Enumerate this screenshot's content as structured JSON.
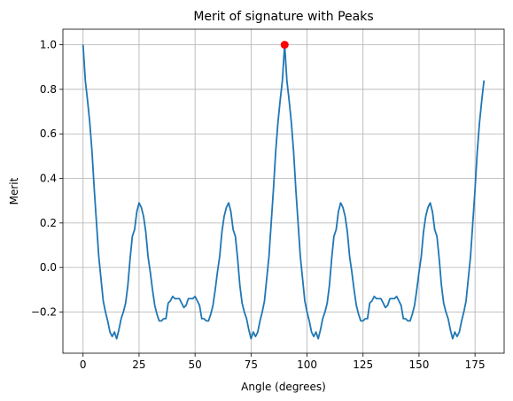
{
  "chart_data": {
    "type": "line",
    "title": "Merit of signature with Peaks",
    "xlabel": "Angle (degrees)",
    "ylabel": "Merit",
    "xlim": [
      -9,
      188
    ],
    "ylim": [
      -0.385,
      1.07
    ],
    "grid": true,
    "xticks": [
      0,
      25,
      50,
      75,
      100,
      125,
      150,
      175
    ],
    "xtick_labels": [
      "0",
      "25",
      "50",
      "75",
      "100",
      "125",
      "150",
      "175"
    ],
    "yticks": [
      -0.2,
      0.0,
      0.2,
      0.4,
      0.6,
      0.8,
      1.0
    ],
    "ytick_labels": [
      "−0.2",
      "0.0",
      "0.2",
      "0.4",
      "0.6",
      "0.8",
      "1.0"
    ],
    "series": [
      {
        "type": "line",
        "color": "#1f77b4",
        "x": [
          0,
          1,
          2,
          3,
          4,
          5,
          6,
          7,
          8,
          9,
          10,
          11,
          12,
          13,
          14,
          15,
          16,
          17,
          18,
          19,
          20,
          21,
          22,
          23,
          24,
          25,
          26,
          27,
          28,
          29,
          30,
          31,
          32,
          33,
          34,
          35,
          36,
          37,
          38,
          39,
          40,
          41,
          42,
          43,
          44,
          45,
          46,
          47,
          48,
          49,
          50,
          51,
          52,
          53,
          54,
          55,
          56,
          57,
          58,
          59,
          60,
          61,
          62,
          63,
          64,
          65,
          66,
          67,
          68,
          69,
          70,
          71,
          72,
          73,
          74,
          75,
          76,
          77,
          78,
          79,
          80,
          81,
          82,
          83,
          84,
          85,
          86,
          87,
          88,
          89,
          90,
          91,
          92,
          93,
          94,
          95,
          96,
          97,
          98,
          99,
          100,
          101,
          102,
          103,
          104,
          105,
          106,
          107,
          108,
          109,
          110,
          111,
          112,
          113,
          114,
          115,
          116,
          117,
          118,
          119,
          120,
          121,
          122,
          123,
          124,
          125,
          126,
          127,
          128,
          129,
          130,
          131,
          132,
          133,
          134,
          135,
          136,
          137,
          138,
          139,
          140,
          141,
          142,
          143,
          144,
          145,
          146,
          147,
          148,
          149,
          150,
          151,
          152,
          153,
          154,
          155,
          156,
          157,
          158,
          159,
          160,
          161,
          162,
          163,
          164,
          165,
          166,
          167,
          168,
          169,
          170,
          171,
          172,
          173,
          174,
          175,
          176,
          177,
          178,
          179
        ],
        "y": [
          1.0,
          0.84,
          0.75,
          0.65,
          0.52,
          0.35,
          0.2,
          0.05,
          -0.05,
          -0.15,
          -0.2,
          -0.24,
          -0.29,
          -0.31,
          -0.29,
          -0.32,
          -0.28,
          -0.23,
          -0.2,
          -0.16,
          -0.08,
          0.04,
          0.14,
          0.17,
          0.25,
          0.29,
          0.27,
          0.23,
          0.16,
          0.05,
          -0.02,
          -0.1,
          -0.17,
          -0.21,
          -0.24,
          -0.24,
          -0.23,
          -0.23,
          -0.16,
          -0.15,
          -0.13,
          -0.14,
          -0.14,
          -0.14,
          -0.16,
          -0.18,
          -0.17,
          -0.14,
          -0.14,
          -0.14,
          -0.13,
          -0.15,
          -0.17,
          -0.23,
          -0.23,
          -0.24,
          -0.24,
          -0.21,
          -0.17,
          -0.1,
          -0.02,
          0.05,
          0.16,
          0.23,
          0.27,
          0.29,
          0.25,
          0.17,
          0.14,
          0.04,
          -0.08,
          -0.16,
          -0.2,
          -0.23,
          -0.28,
          -0.32,
          -0.29,
          -0.31,
          -0.29,
          -0.24,
          -0.2,
          -0.15,
          -0.05,
          0.05,
          0.2,
          0.35,
          0.52,
          0.65,
          0.75,
          0.84,
          1.0,
          0.84,
          0.75,
          0.65,
          0.52,
          0.35,
          0.2,
          0.05,
          -0.05,
          -0.15,
          -0.2,
          -0.24,
          -0.29,
          -0.31,
          -0.29,
          -0.32,
          -0.28,
          -0.23,
          -0.2,
          -0.16,
          -0.08,
          0.04,
          0.14,
          0.17,
          0.25,
          0.29,
          0.27,
          0.23,
          0.16,
          0.05,
          -0.02,
          -0.1,
          -0.17,
          -0.21,
          -0.24,
          -0.24,
          -0.23,
          -0.23,
          -0.16,
          -0.15,
          -0.13,
          -0.14,
          -0.14,
          -0.14,
          -0.16,
          -0.18,
          -0.17,
          -0.14,
          -0.14,
          -0.14,
          -0.13,
          -0.15,
          -0.17,
          -0.23,
          -0.23,
          -0.24,
          -0.24,
          -0.21,
          -0.17,
          -0.1,
          -0.02,
          0.05,
          0.16,
          0.23,
          0.27,
          0.29,
          0.25,
          0.17,
          0.14,
          0.04,
          -0.08,
          -0.16,
          -0.2,
          -0.23,
          -0.28,
          -0.32,
          -0.29,
          -0.31,
          -0.29,
          -0.24,
          -0.2,
          -0.15,
          -0.05,
          0.05,
          0.2,
          0.35,
          0.52,
          0.65,
          0.75,
          0.84
        ]
      },
      {
        "type": "scatter",
        "color": "#ff0000",
        "x": [
          90
        ],
        "y": [
          1.0
        ]
      }
    ]
  }
}
